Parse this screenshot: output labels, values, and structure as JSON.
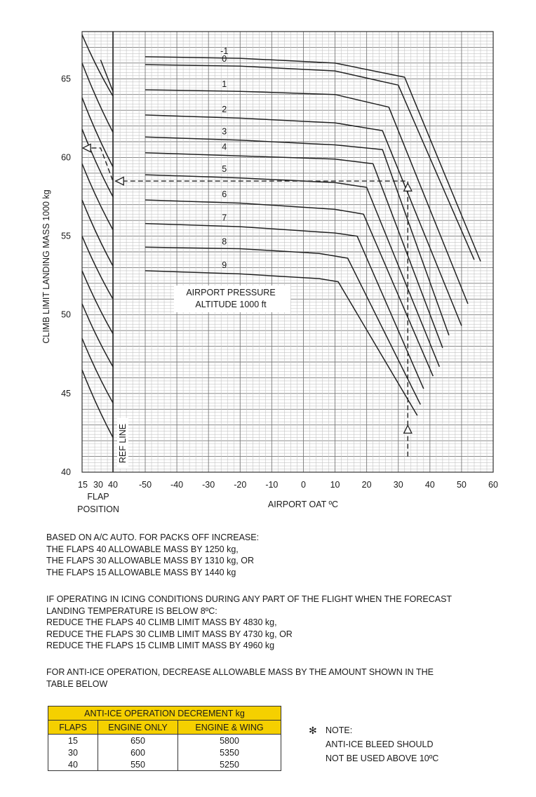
{
  "chart_data": {
    "type": "line",
    "title": "",
    "ylabel": "CLIMB LIMIT LANDING MASS  1000 kg",
    "xlabel": "AIRPORT OAT ºC",
    "flap_axis_label": [
      "FLAP",
      "POSITION"
    ],
    "flap_ticks": [
      "15",
      "30",
      "40"
    ],
    "ref_line_label": "REF LINE",
    "ylim": [
      40,
      68
    ],
    "xlim": [
      -50,
      60
    ],
    "yticks": [
      "40",
      "45",
      "50",
      "55",
      "60",
      "65"
    ],
    "xticks": [
      "-50",
      "-40",
      "-30",
      "-20",
      "-10",
      "0",
      "10",
      "20",
      "30",
      "40",
      "50",
      "60"
    ],
    "grid": true,
    "altitude_legend": [
      "AIRPORT PRESSURE",
      "ALTITUDE  1000 ft"
    ],
    "series": [
      {
        "name": "-1",
        "points": [
          [
            -50,
            66.4
          ],
          [
            -20,
            66.3
          ],
          [
            10,
            66.0
          ],
          [
            32,
            65.1
          ],
          [
            56,
            53.4
          ]
        ]
      },
      {
        "name": "0",
        "points": [
          [
            -50,
            65.9
          ],
          [
            -20,
            65.8
          ],
          [
            10,
            65.5
          ],
          [
            30,
            64.6
          ],
          [
            54,
            53.5
          ]
        ]
      },
      {
        "name": "1",
        "points": [
          [
            -50,
            64.3
          ],
          [
            -20,
            64.2
          ],
          [
            10,
            64.0
          ],
          [
            27,
            63.2
          ],
          [
            52,
            50.7
          ]
        ]
      },
      {
        "name": "2",
        "points": [
          [
            -50,
            62.7
          ],
          [
            -20,
            62.5
          ],
          [
            10,
            62.2
          ],
          [
            25,
            61.7
          ],
          [
            50,
            49.3
          ]
        ]
      },
      {
        "name": "3",
        "points": [
          [
            -50,
            61.3
          ],
          [
            -20,
            61.1
          ],
          [
            10,
            60.8
          ],
          [
            25,
            60.5
          ],
          [
            46,
            48.7
          ]
        ]
      },
      {
        "name": "4",
        "points": [
          [
            -50,
            60.3
          ],
          [
            -20,
            60.1
          ],
          [
            10,
            59.9
          ],
          [
            22,
            59.6
          ],
          [
            44,
            47.9
          ]
        ]
      },
      {
        "name": "5",
        "points": [
          [
            -50,
            58.9
          ],
          [
            -20,
            58.7
          ],
          [
            10,
            58.4
          ],
          [
            20,
            58.1
          ],
          [
            43,
            46.7
          ]
        ]
      },
      {
        "name": "6",
        "points": [
          [
            -50,
            57.3
          ],
          [
            -20,
            57.1
          ],
          [
            10,
            56.7
          ],
          [
            19,
            56.4
          ],
          [
            41,
            46.1
          ]
        ]
      },
      {
        "name": "7",
        "points": [
          [
            -50,
            55.8
          ],
          [
            -20,
            55.6
          ],
          [
            10,
            55.2
          ],
          [
            17,
            55.0
          ],
          [
            38,
            45.3
          ]
        ]
      },
      {
        "name": "8",
        "points": [
          [
            -50,
            54.3
          ],
          [
            -20,
            54.2
          ],
          [
            5,
            53.9
          ],
          [
            14,
            53.6
          ],
          [
            37,
            44.3
          ]
        ]
      },
      {
        "name": "9",
        "points": [
          [
            -50,
            52.8
          ],
          [
            -20,
            52.6
          ],
          [
            5,
            52.3
          ],
          [
            11,
            52.1
          ],
          [
            36,
            43.6
          ]
        ]
      }
    ],
    "flap_guide_lines": [
      {
        "start": [
          15,
          67.8
        ],
        "end": [
          40,
          63.9
        ]
      },
      {
        "start": [
          15,
          66.0
        ],
        "end": [
          40,
          61.6
        ]
      },
      {
        "start": [
          15,
          63.8
        ],
        "end": [
          40,
          59.4
        ]
      },
      {
        "start": [
          15,
          61.8
        ],
        "end": [
          40,
          57.5
        ]
      },
      {
        "start": [
          15,
          59.6
        ],
        "end": [
          40,
          55.4
        ]
      },
      {
        "start": [
          15,
          57.3
        ],
        "end": [
          40,
          53.1
        ]
      },
      {
        "start": [
          15,
          55.0
        ],
        "end": [
          40,
          51.0
        ]
      },
      {
        "start": [
          15,
          52.8
        ],
        "end": [
          40,
          48.8
        ]
      },
      {
        "start": [
          15,
          50.7
        ],
        "end": [
          40,
          46.7
        ]
      },
      {
        "start": [
          15,
          48.5
        ],
        "end": [
          40,
          44.4
        ]
      },
      {
        "start": [
          15,
          46.5
        ],
        "end": [
          40,
          42.2
        ]
      }
    ],
    "example_path": [
      [
        33,
        41.0
      ],
      [
        33,
        58.5
      ],
      [
        40,
        58.5
      ],
      [
        30,
        60.6
      ],
      [
        15,
        60.6
      ]
    ]
  },
  "notes": {
    "packs": [
      "BASED ON A/C AUTO.     FOR PACKS OFF INCREASE:",
      "THE FLAPS 40 ALLOWABLE MASS BY 1250 kg,",
      "THE FLAPS 30 ALLOWABLE MASS BY 1310 kg,  OR",
      "THE FLAPS 15 ALLOWABLE MASS BY 1440 kg"
    ],
    "icing": [
      "IF OPERATING IN ICING CONDITIONS DURING ANY PART OF THE FLIGHT WHEN THE FORECAST",
      "LANDING TEMPERATURE IS BELOW 8ºC:",
      "REDUCE THE FLAPS 40 CLIMB LIMIT MASS BY 4830 kg,",
      "REDUCE THE FLAPS 30 CLIMB LIMIT MASS BY 4730 kg,  OR",
      "REDUCE THE FLAPS 15 CLIMB LIMIT MASS BY 4960 kg"
    ],
    "anti_ice": [
      "FOR ANTI-ICE OPERATION, DECREASE ALLOWABLE MASS BY THE AMOUNT SHOWN IN THE",
      "TABLE BELOW"
    ]
  },
  "table": {
    "title": "ANTI-ICE OPERATION DECREMENT  kg",
    "headers": [
      "FLAPS",
      "ENGINE ONLY",
      "ENGINE & WING"
    ],
    "rows": [
      [
        "15",
        "650",
        "5800"
      ],
      [
        "30",
        "600",
        "5350"
      ],
      [
        "40",
        "550",
        "5250"
      ]
    ],
    "header_color": "#f5d000"
  },
  "side_note": {
    "symbol": "✻",
    "lines": [
      "NOTE:",
      "ANTI-ICE BLEED SHOULD",
      "NOT BE USED ABOVE 10ºC"
    ]
  }
}
